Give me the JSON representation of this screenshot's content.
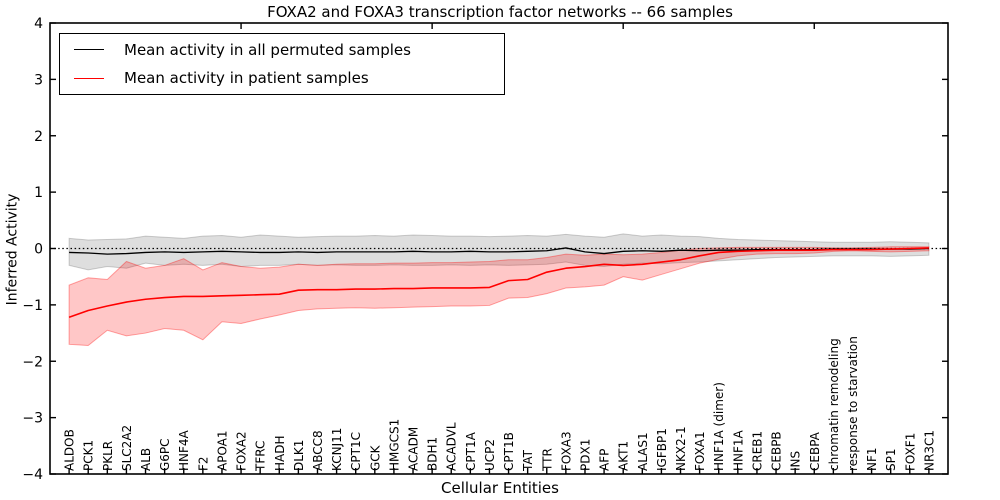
{
  "title": "FOXA2 and FOXA3 transcription factor networks -- 66 samples",
  "axes": {
    "ylabel": "Inferred Activity",
    "xlabel": "Cellular Entities"
  },
  "legend": {
    "items": [
      {
        "label": "Mean activity in all permuted samples",
        "color": "#000000"
      },
      {
        "label": "Mean activity in patient samples",
        "color": "#ff0000"
      }
    ]
  },
  "chart_data": {
    "type": "line",
    "title": "FOXA2 and FOXA3 transcription factor networks -- 66 samples",
    "xlabel": "Cellular Entities",
    "ylabel": "Inferred Activity",
    "xlim": [
      0,
      47
    ],
    "ylim": [
      -4,
      4
    ],
    "yticks": [
      -4,
      -3,
      -2,
      -1,
      0,
      1,
      2,
      3,
      4
    ],
    "yticklabels": [
      "−4",
      "−3",
      "−2",
      "−1",
      "0",
      "1",
      "2",
      "3",
      "4"
    ],
    "top_ticks_x": [
      10,
      20,
      30,
      40
    ],
    "grid": false,
    "legend_position": "upper left",
    "zero_line": {
      "y": 0,
      "style": "dotted",
      "color": "#000000"
    },
    "categories": [
      "ALDOB",
      "PCK1",
      "PKLR",
      "SLC2A2",
      "ALB",
      "G6PC",
      "HNF4A",
      "F2",
      "APOA1",
      "FOXA2",
      "TFRC",
      "HADH",
      "DLK1",
      "ABCC8",
      "KCNJ11",
      "CPT1C",
      "GCK",
      "HMGCS1",
      "ACADM",
      "BDH1",
      "ACADVL",
      "CPT1A",
      "UCP2",
      "CPT1B",
      "TAT",
      "TTR",
      "FOXA3",
      "PDX1",
      "AFP",
      "AKT1",
      "ALAS1",
      "IGFBP1",
      "NKX2-1",
      "FOXA1",
      "HNF1A (dimer)",
      "HNF1A",
      "CREB1",
      "CEBPB",
      "INS",
      "CEBPA",
      "chromatin remodeling",
      "response to starvation",
      "NF1",
      "SP1",
      "FOXF1",
      "NR3C1"
    ],
    "series": [
      {
        "name": "Mean activity in all permuted samples",
        "key": "permuted",
        "color": "#000000",
        "line_width": 1.3,
        "band_color": "rgba(0,0,0,0.13)",
        "band_edge": "rgba(0,0,0,0.18)",
        "values": [
          -0.07,
          -0.08,
          -0.1,
          -0.09,
          -0.07,
          -0.06,
          -0.07,
          -0.06,
          -0.05,
          -0.06,
          -0.07,
          -0.07,
          -0.06,
          -0.07,
          -0.06,
          -0.06,
          -0.06,
          -0.06,
          -0.05,
          -0.06,
          -0.06,
          -0.05,
          -0.06,
          -0.06,
          -0.05,
          -0.04,
          0.01,
          -0.06,
          -0.09,
          -0.05,
          -0.04,
          -0.05,
          -0.03,
          -0.04,
          -0.03,
          -0.03,
          -0.02,
          -0.02,
          -0.02,
          -0.02,
          -0.01,
          -0.01,
          -0.01,
          -0.01,
          -0.01,
          0.0
        ],
        "band_high": [
          0.18,
          0.15,
          0.16,
          0.17,
          0.22,
          0.2,
          0.18,
          0.22,
          0.23,
          0.2,
          0.24,
          0.22,
          0.2,
          0.21,
          0.22,
          0.22,
          0.23,
          0.22,
          0.24,
          0.23,
          0.22,
          0.22,
          0.21,
          0.22,
          0.23,
          0.22,
          0.25,
          0.22,
          0.2,
          0.26,
          0.22,
          0.24,
          0.22,
          0.21,
          0.18,
          0.16,
          0.15,
          0.14,
          0.13,
          0.12,
          0.11,
          0.11,
          0.11,
          0.12,
          0.11,
          0.1
        ],
        "band_low": [
          -0.3,
          -0.38,
          -0.32,
          -0.35,
          -0.26,
          -0.3,
          -0.28,
          -0.3,
          -0.28,
          -0.32,
          -0.3,
          -0.3,
          -0.28,
          -0.3,
          -0.29,
          -0.3,
          -0.3,
          -0.29,
          -0.3,
          -0.3,
          -0.29,
          -0.3,
          -0.29,
          -0.3,
          -0.29,
          -0.28,
          -0.24,
          -0.3,
          -0.32,
          -0.28,
          -0.26,
          -0.27,
          -0.25,
          -0.24,
          -0.22,
          -0.2,
          -0.18,
          -0.16,
          -0.15,
          -0.14,
          -0.13,
          -0.13,
          -0.13,
          -0.14,
          -0.13,
          -0.12
        ]
      },
      {
        "name": "Mean activity in patient samples",
        "key": "patient",
        "color": "#ff0000",
        "line_width": 1.6,
        "band_color": "rgba(255,0,0,0.22)",
        "band_edge": "rgba(255,0,0,0.35)",
        "values": [
          -1.22,
          -1.1,
          -1.02,
          -0.95,
          -0.9,
          -0.87,
          -0.85,
          -0.85,
          -0.84,
          -0.83,
          -0.82,
          -0.81,
          -0.74,
          -0.73,
          -0.73,
          -0.72,
          -0.72,
          -0.71,
          -0.71,
          -0.7,
          -0.7,
          -0.7,
          -0.69,
          -0.57,
          -0.55,
          -0.42,
          -0.35,
          -0.32,
          -0.28,
          -0.3,
          -0.28,
          -0.24,
          -0.2,
          -0.13,
          -0.07,
          -0.05,
          -0.04,
          -0.03,
          -0.03,
          -0.03,
          -0.02,
          -0.02,
          -0.02,
          -0.01,
          0.0,
          0.01
        ],
        "band_high": [
          -0.65,
          -0.52,
          -0.55,
          -0.23,
          -0.35,
          -0.3,
          -0.18,
          -0.38,
          -0.25,
          -0.32,
          -0.35,
          -0.33,
          -0.28,
          -0.3,
          -0.28,
          -0.27,
          -0.27,
          -0.26,
          -0.26,
          -0.25,
          -0.25,
          -0.24,
          -0.23,
          -0.2,
          -0.2,
          -0.16,
          -0.1,
          -0.12,
          -0.1,
          -0.11,
          -0.1,
          -0.07,
          -0.03,
          0.0,
          0.01,
          0.02,
          0.02,
          0.02,
          0.02,
          0.02,
          0.01,
          0.01,
          0.02,
          0.03,
          0.03,
          0.03
        ],
        "band_low": [
          -1.7,
          -1.72,
          -1.45,
          -1.55,
          -1.5,
          -1.42,
          -1.45,
          -1.62,
          -1.3,
          -1.33,
          -1.25,
          -1.18,
          -1.1,
          -1.07,
          -1.06,
          -1.05,
          -1.06,
          -1.05,
          -1.04,
          -1.03,
          -1.02,
          -1.02,
          -1.01,
          -0.88,
          -0.87,
          -0.8,
          -0.7,
          -0.68,
          -0.65,
          -0.5,
          -0.56,
          -0.46,
          -0.36,
          -0.26,
          -0.19,
          -0.13,
          -0.1,
          -0.09,
          -0.09,
          -0.08,
          -0.05,
          -0.04,
          -0.05,
          -0.06,
          -0.05,
          -0.04
        ]
      }
    ]
  }
}
